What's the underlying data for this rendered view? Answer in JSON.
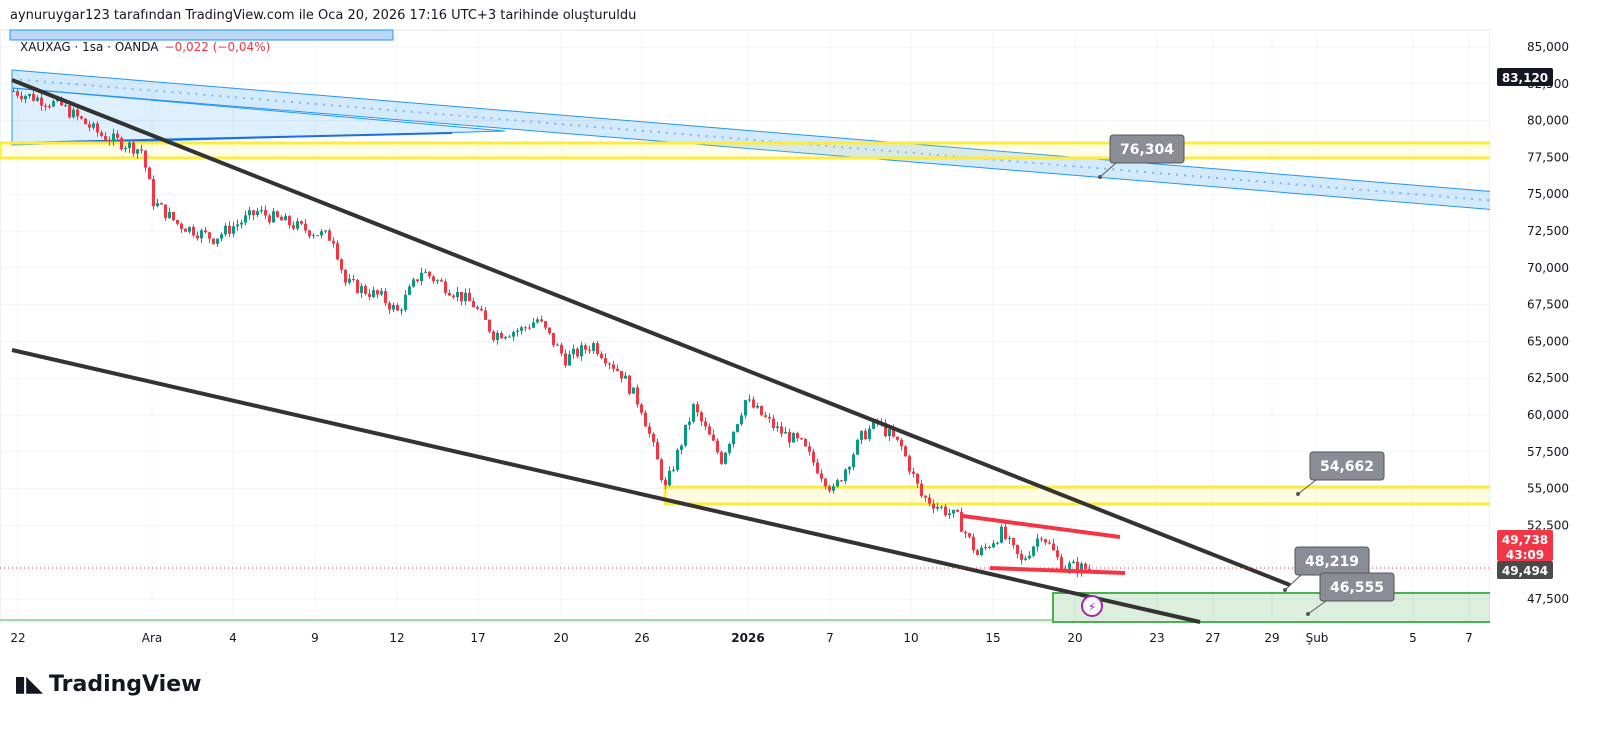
{
  "header": {
    "attribution": "aynuruygar123 tarafından TradingView.com ile Oca 20, 2026 17:16 UTC+3 tarihinde oluşturuldu"
  },
  "symbol": {
    "name": "XAUXAG · 1sa · OANDA",
    "change": "−0,022 (−0,04%)"
  },
  "logo": "TradingView",
  "colors": {
    "up": "#089981",
    "down": "#f23645",
    "yellow": "#ffeb3b",
    "channel": "#2196f3"
  },
  "chart_data": {
    "type": "candlestick",
    "price_axis": {
      "ticks": [
        "85,000",
        "82,500",
        "80,000",
        "77,500",
        "75,000",
        "72,500",
        "70,000",
        "67,500",
        "65,000",
        "62,500",
        "60,000",
        "57,500",
        "55,000",
        "52,500",
        "47,500"
      ],
      "range": [
        46000,
        86000
      ]
    },
    "time_axis": {
      "ticks": [
        "22",
        "Ara",
        "4",
        "9",
        "12",
        "17",
        "20",
        "26",
        "2026",
        "7",
        "10",
        "15",
        "20",
        "23",
        "27",
        "29",
        "Şub",
        "5",
        "7"
      ]
    },
    "price_path": [
      [
        0,
        82000
      ],
      [
        12,
        81000
      ],
      [
        22,
        79000
      ],
      [
        32,
        78000
      ],
      [
        35,
        74500
      ],
      [
        41,
        73000
      ],
      [
        50,
        72000
      ],
      [
        61,
        73800
      ],
      [
        72,
        72700
      ],
      [
        80,
        72000
      ],
      [
        83,
        69000
      ],
      [
        92,
        68000
      ],
      [
        96,
        67000
      ],
      [
        102,
        69800
      ],
      [
        115,
        67500
      ],
      [
        120,
        65500
      ],
      [
        127,
        65800
      ],
      [
        131,
        66500
      ],
      [
        138,
        63800
      ],
      [
        145,
        64800
      ],
      [
        152,
        62800
      ],
      [
        157,
        60500
      ],
      [
        163,
        55000
      ],
      [
        170,
        60500
      ],
      [
        177,
        57000
      ],
      [
        183,
        61000
      ],
      [
        191,
        59000
      ],
      [
        197,
        58000
      ],
      [
        205,
        54800
      ],
      [
        212,
        58500
      ],
      [
        216,
        59500
      ],
      [
        222,
        57800
      ],
      [
        227,
        54500
      ],
      [
        236,
        53000
      ],
      [
        241,
        50500
      ],
      [
        247,
        52000
      ],
      [
        252,
        50000
      ],
      [
        257,
        52000
      ],
      [
        262,
        49800
      ],
      [
        270,
        49500
      ]
    ],
    "labels": {
      "current": "49,738",
      "countdown": "43:09",
      "last": "49,494",
      "top": "83,120",
      "callouts": [
        "76,304",
        "54,662",
        "48,219",
        "46,555"
      ]
    }
  }
}
